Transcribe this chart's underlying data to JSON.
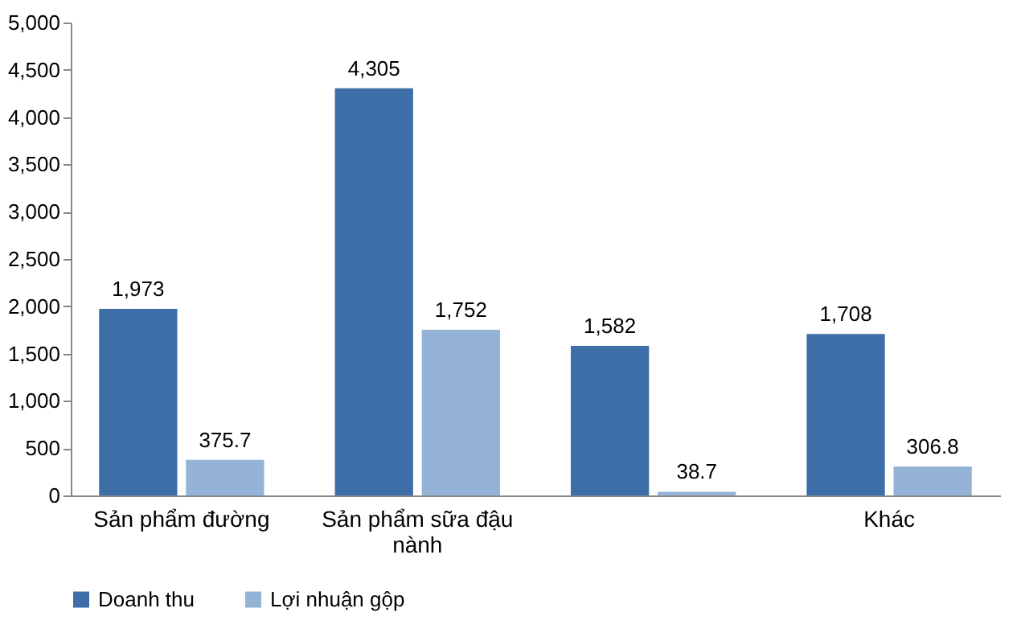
{
  "chart_data": {
    "type": "bar",
    "categories": [
      "Sản phẩm đường",
      "Sản phẩm sữa đậu nành",
      null,
      "Khác"
    ],
    "series": [
      {
        "name": "Doanh thu",
        "color": "#3d6ea8",
        "values": [
          1973,
          4305,
          1582,
          1708
        ],
        "value_labels": [
          "1,973",
          "4,305",
          "1,582",
          "1,708"
        ]
      },
      {
        "name": "Lợi nhuận gộp",
        "color": "#95b3d7",
        "values": [
          375.7,
          1752,
          38.7,
          306.8
        ],
        "value_labels": [
          "375.7",
          "1,752",
          "38.7",
          "306.8"
        ]
      }
    ],
    "ylim": [
      0,
      5000
    ],
    "yticks": [
      0,
      500,
      {
        "value": 1000,
        "label": "1,000"
      },
      {
        "value": 1500,
        "label": "1,500"
      },
      {
        "value": 2000,
        "label": "2,000"
      },
      {
        "value": 2500,
        "label": "2,500"
      },
      {
        "value": 3000,
        "label": "3,000"
      },
      {
        "value": 3500,
        "label": "3,500"
      },
      {
        "value": 4000,
        "label": "4,000"
      },
      {
        "value": 4500,
        "label": "4,500"
      },
      {
        "value": 5000,
        "label": "5,000"
      }
    ],
    "legend": "bottom"
  }
}
